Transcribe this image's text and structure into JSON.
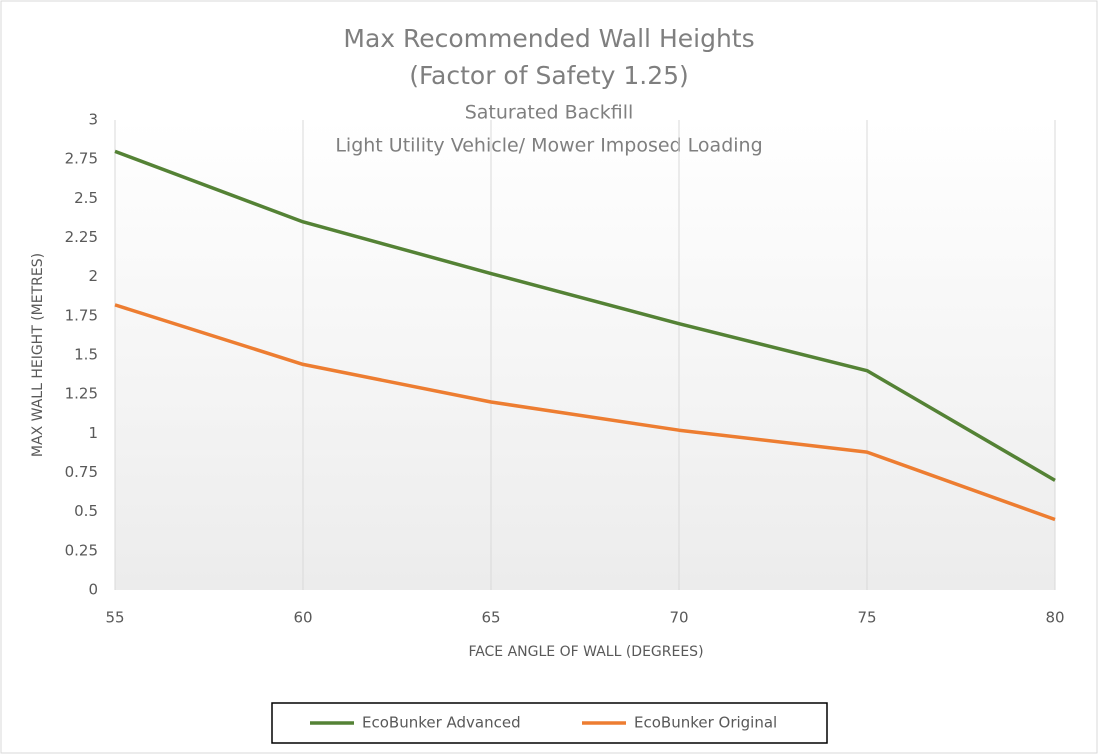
{
  "chart_data": {
    "type": "line",
    "title": [
      "Max Recommended Wall Heights",
      "(Factor of Safety 1.25)"
    ],
    "subtitle": [
      "Saturated Backfill",
      "Light Utility Vehicle/ Mower Imposed Loading"
    ],
    "x_label": "FACE ANGLE OF WALL (DEGREES)",
    "y_label": "MAX WALL HEIGHT (METRES)",
    "x": [
      55,
      60,
      65,
      70,
      75,
      80
    ],
    "series": [
      {
        "name": "EcoBunker Advanced",
        "color": "#548235",
        "values": [
          2.8,
          2.35,
          2.02,
          1.7,
          1.4,
          0.7
        ]
      },
      {
        "name": "EcoBunker Original",
        "color": "#ed7d31",
        "values": [
          1.82,
          1.44,
          1.2,
          1.02,
          0.88,
          0.45
        ]
      }
    ],
    "xlim": [
      55,
      80
    ],
    "xticks": [
      55,
      60,
      65,
      70,
      75,
      80
    ],
    "ylim": [
      0,
      3
    ],
    "yticks": [
      0,
      0.25,
      0.5,
      0.75,
      1,
      1.25,
      1.5,
      1.75,
      2,
      2.25,
      2.5,
      2.75,
      3
    ],
    "grid": true,
    "legend": "bottom"
  }
}
